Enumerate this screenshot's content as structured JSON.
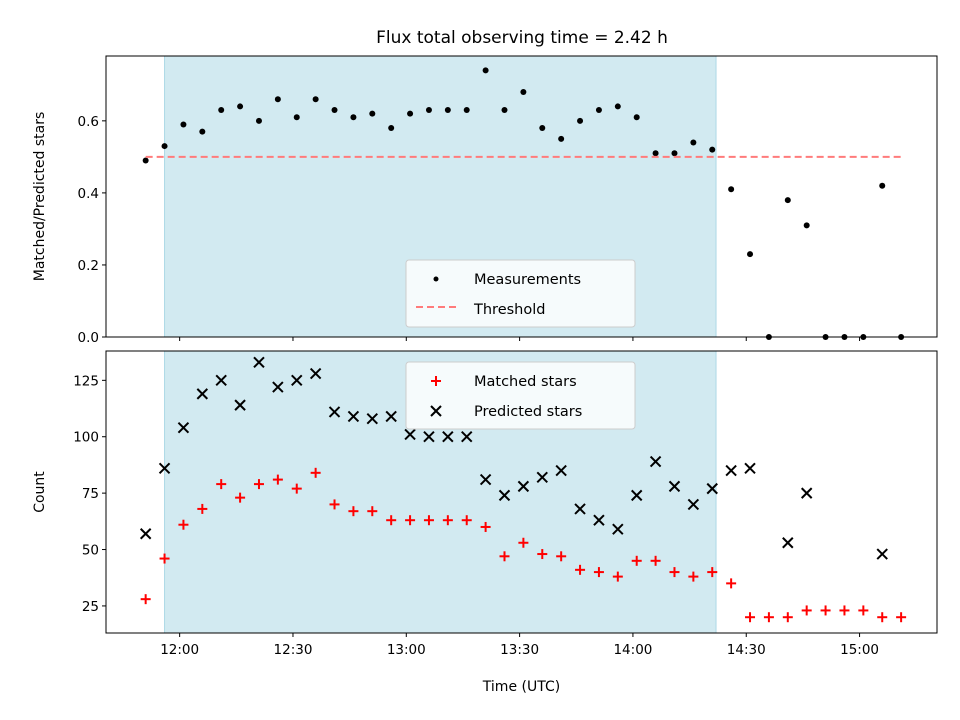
{
  "figure": {
    "title": "Flux total observing time = 2.42 h"
  },
  "shaded_region": {
    "x_start": "11:56",
    "x_end": "14:22",
    "color": "#add8e6"
  },
  "chart_data": [
    {
      "type": "scatter",
      "ylabel": "Matched/Predicted stars",
      "ylim": [
        0,
        0.78
      ],
      "yticks": [
        "0.0",
        "0.2",
        "0.4",
        "0.6"
      ],
      "legend": {
        "placement": "lower-center",
        "entries": [
          "Measurements",
          "Threshold"
        ]
      },
      "series": [
        {
          "name": "Measurements",
          "color": "#000000",
          "marker": "dot",
          "points": [
            [
              "11:51",
              0.49
            ],
            [
              "11:56",
              0.53
            ],
            [
              "12:01",
              0.59
            ],
            [
              "12:06",
              0.57
            ],
            [
              "12:11",
              0.63
            ],
            [
              "12:16",
              0.64
            ],
            [
              "12:21",
              0.6
            ],
            [
              "12:26",
              0.66
            ],
            [
              "12:31",
              0.61
            ],
            [
              "12:36",
              0.66
            ],
            [
              "12:41",
              0.63
            ],
            [
              "12:46",
              0.61
            ],
            [
              "12:51",
              0.62
            ],
            [
              "12:56",
              0.58
            ],
            [
              "13:01",
              0.62
            ],
            [
              "13:06",
              0.63
            ],
            [
              "13:11",
              0.63
            ],
            [
              "13:16",
              0.63
            ],
            [
              "13:21",
              0.74
            ],
            [
              "13:26",
              0.63
            ],
            [
              "13:31",
              0.68
            ],
            [
              "13:36",
              0.58
            ],
            [
              "13:41",
              0.55
            ],
            [
              "13:46",
              0.6
            ],
            [
              "13:51",
              0.63
            ],
            [
              "13:56",
              0.64
            ],
            [
              "14:01",
              0.61
            ],
            [
              "14:06",
              0.51
            ],
            [
              "14:11",
              0.51
            ],
            [
              "14:16",
              0.54
            ],
            [
              "14:21",
              0.52
            ],
            [
              "14:26",
              0.41
            ],
            [
              "14:31",
              0.23
            ],
            [
              "14:36",
              0.0
            ],
            [
              "14:41",
              0.38
            ],
            [
              "14:46",
              0.31
            ],
            [
              "14:51",
              0.0
            ],
            [
              "14:56",
              0.0
            ],
            [
              "15:01",
              0.0
            ],
            [
              "15:06",
              0.42
            ],
            [
              "15:11",
              0.0
            ]
          ]
        },
        {
          "name": "Threshold",
          "color": "#ff7b7b",
          "style": "dashed",
          "points": [
            [
              "11:51",
              0.5
            ],
            [
              "15:11",
              0.5
            ]
          ]
        }
      ]
    },
    {
      "type": "scatter",
      "xlabel": "Time (UTC)",
      "ylabel": "Count",
      "ylim": [
        13,
        138
      ],
      "yticks": [
        "25",
        "50",
        "75",
        "100",
        "125"
      ],
      "xticks": [
        "12:00",
        "12:30",
        "13:00",
        "13:30",
        "14:00",
        "14:30",
        "15:00"
      ],
      "legend": {
        "placement": "upper-center",
        "entries": [
          "Matched stars",
          "Predicted stars"
        ]
      },
      "series": [
        {
          "name": "Matched stars",
          "color": "#ff0000",
          "marker": "plus",
          "points": [
            [
              "11:51",
              28
            ],
            [
              "11:56",
              46
            ],
            [
              "12:01",
              61
            ],
            [
              "12:06",
              68
            ],
            [
              "12:11",
              79
            ],
            [
              "12:16",
              73
            ],
            [
              "12:21",
              79
            ],
            [
              "12:26",
              81
            ],
            [
              "12:31",
              77
            ],
            [
              "12:36",
              84
            ],
            [
              "12:41",
              70
            ],
            [
              "12:46",
              67
            ],
            [
              "12:51",
              67
            ],
            [
              "12:56",
              63
            ],
            [
              "13:01",
              63
            ],
            [
              "13:06",
              63
            ],
            [
              "13:11",
              63
            ],
            [
              "13:16",
              63
            ],
            [
              "13:21",
              60
            ],
            [
              "13:26",
              47
            ],
            [
              "13:31",
              53
            ],
            [
              "13:36",
              48
            ],
            [
              "13:41",
              47
            ],
            [
              "13:46",
              41
            ],
            [
              "13:51",
              40
            ],
            [
              "13:56",
              38
            ],
            [
              "14:01",
              45
            ],
            [
              "14:06",
              45
            ],
            [
              "14:11",
              40
            ],
            [
              "14:16",
              38
            ],
            [
              "14:21",
              40
            ],
            [
              "14:26",
              35
            ],
            [
              "14:31",
              20
            ],
            [
              "14:36",
              20
            ],
            [
              "14:41",
              20
            ],
            [
              "14:46",
              23
            ],
            [
              "14:51",
              23
            ],
            [
              "14:56",
              23
            ],
            [
              "15:01",
              23
            ],
            [
              "15:06",
              20
            ],
            [
              "15:11",
              20
            ]
          ]
        },
        {
          "name": "Predicted stars",
          "color": "#000000",
          "marker": "x",
          "points": [
            [
              "11:51",
              57
            ],
            [
              "11:56",
              86
            ],
            [
              "12:01",
              104
            ],
            [
              "12:06",
              119
            ],
            [
              "12:11",
              125
            ],
            [
              "12:16",
              114
            ],
            [
              "12:21",
              133
            ],
            [
              "12:26",
              122
            ],
            [
              "12:31",
              125
            ],
            [
              "12:36",
              128
            ],
            [
              "12:41",
              111
            ],
            [
              "12:46",
              109
            ],
            [
              "12:51",
              108
            ],
            [
              "12:56",
              109
            ],
            [
              "13:01",
              101
            ],
            [
              "13:06",
              100
            ],
            [
              "13:11",
              100
            ],
            [
              "13:16",
              100
            ],
            [
              "13:21",
              81
            ],
            [
              "13:26",
              74
            ],
            [
              "13:31",
              78
            ],
            [
              "13:36",
              82
            ],
            [
              "13:41",
              85
            ],
            [
              "13:46",
              68
            ],
            [
              "13:51",
              63
            ],
            [
              "13:56",
              59
            ],
            [
              "14:01",
              74
            ],
            [
              "14:06",
              89
            ],
            [
              "14:11",
              78
            ],
            [
              "14:16",
              70
            ],
            [
              "14:21",
              77
            ],
            [
              "14:26",
              85
            ],
            [
              "14:31",
              86
            ],
            [
              "14:41",
              53
            ],
            [
              "14:46",
              75
            ],
            [
              "15:06",
              48
            ]
          ]
        }
      ]
    }
  ]
}
